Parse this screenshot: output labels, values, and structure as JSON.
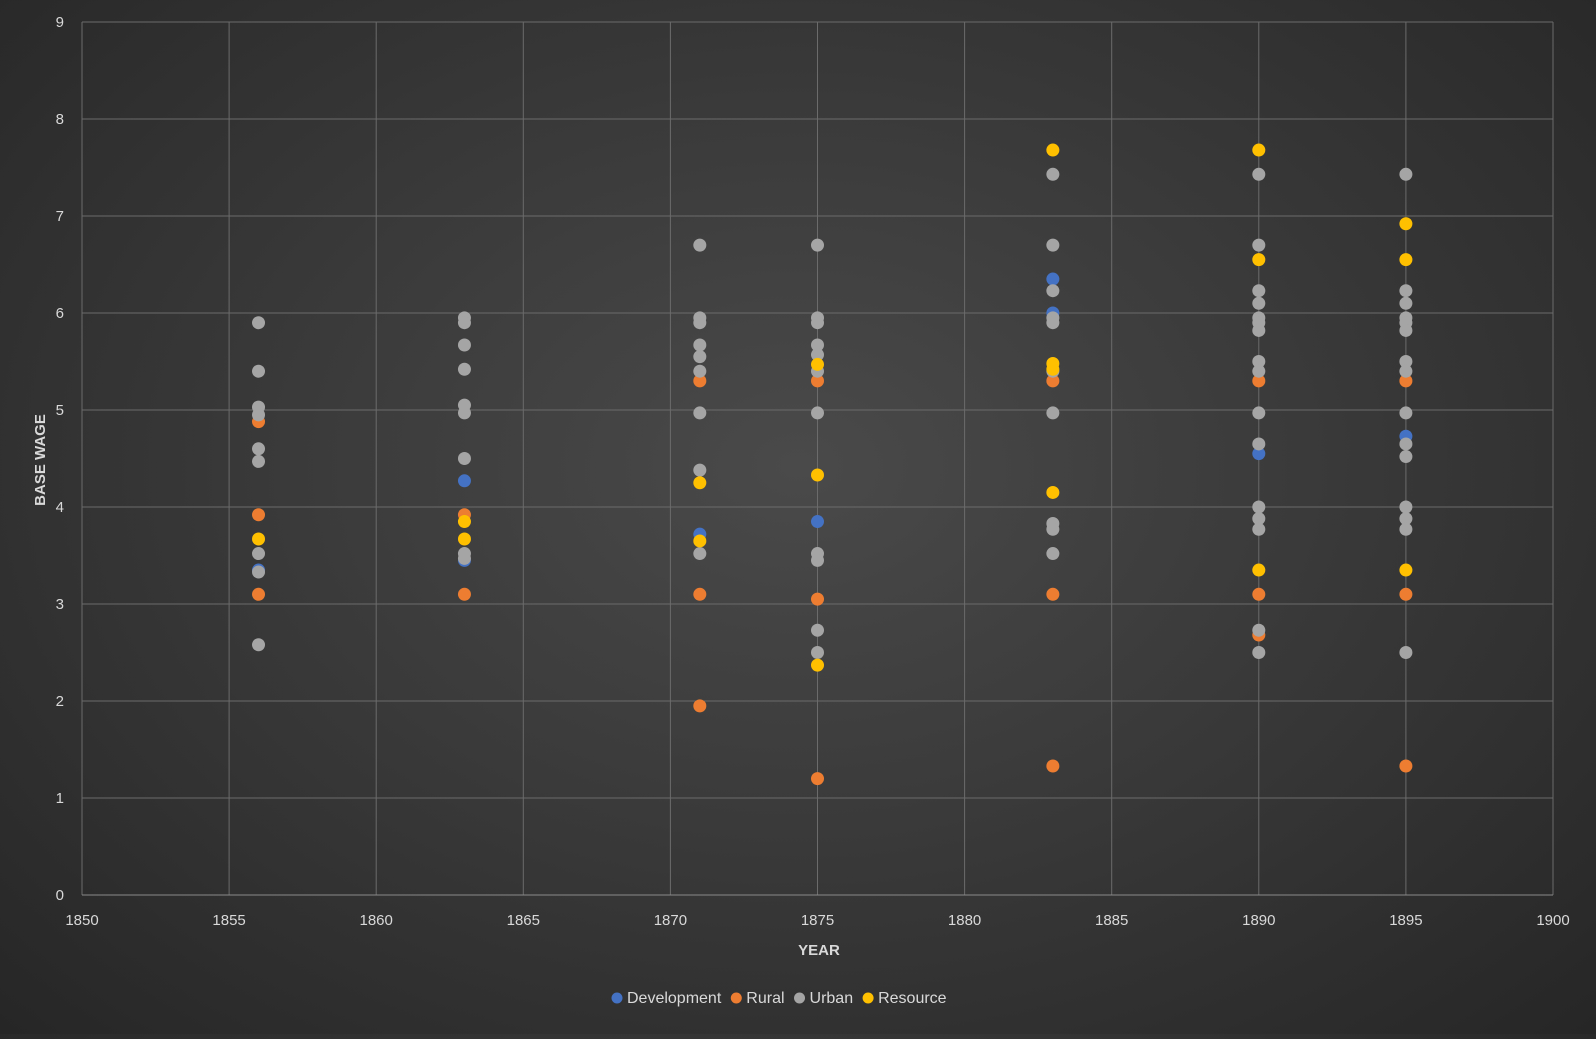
{
  "chart_data": {
    "type": "scatter",
    "title": "",
    "xlabel": "YEAR",
    "ylabel": "BASE WAGE",
    "xlim": [
      1850,
      1900
    ],
    "ylim": [
      0,
      9
    ],
    "x_ticks": [
      1850,
      1855,
      1860,
      1865,
      1870,
      1875,
      1880,
      1885,
      1890,
      1895,
      1900
    ],
    "y_ticks": [
      0,
      1,
      2,
      3,
      4,
      5,
      6,
      7,
      8,
      9
    ],
    "grid": true,
    "legend_position": "bottom",
    "series": [
      {
        "name": "Development",
        "color": "#4472c4",
        "points": [
          [
            1856,
            3.35
          ],
          [
            1863,
            4.27
          ],
          [
            1863,
            3.45
          ],
          [
            1871,
            3.72
          ],
          [
            1875,
            3.85
          ],
          [
            1883,
            6.35
          ],
          [
            1883,
            6.0
          ],
          [
            1890,
            4.55
          ],
          [
            1895,
            4.73
          ]
        ]
      },
      {
        "name": "Rural",
        "color": "#ed7d31",
        "points": [
          [
            1856,
            4.88
          ],
          [
            1856,
            3.92
          ],
          [
            1856,
            3.1
          ],
          [
            1863,
            3.92
          ],
          [
            1863,
            3.1
          ],
          [
            1871,
            5.3
          ],
          [
            1871,
            3.1
          ],
          [
            1871,
            1.95
          ],
          [
            1875,
            5.3
          ],
          [
            1875,
            3.05
          ],
          [
            1875,
            1.2
          ],
          [
            1883,
            5.3
          ],
          [
            1883,
            3.1
          ],
          [
            1883,
            1.33
          ],
          [
            1890,
            5.3
          ],
          [
            1890,
            3.1
          ],
          [
            1890,
            2.68
          ],
          [
            1895,
            5.3
          ],
          [
            1895,
            3.1
          ],
          [
            1895,
            1.33
          ]
        ]
      },
      {
        "name": "Urban",
        "color": "#a5a5a5",
        "points": [
          [
            1856,
            5.9
          ],
          [
            1856,
            5.4
          ],
          [
            1856,
            5.03
          ],
          [
            1856,
            4.95
          ],
          [
            1856,
            4.6
          ],
          [
            1856,
            4.47
          ],
          [
            1856,
            3.52
          ],
          [
            1856,
            3.33
          ],
          [
            1856,
            2.58
          ],
          [
            1863,
            5.95
          ],
          [
            1863,
            5.9
          ],
          [
            1863,
            5.67
          ],
          [
            1863,
            5.42
          ],
          [
            1863,
            5.05
          ],
          [
            1863,
            4.97
          ],
          [
            1863,
            4.5
          ],
          [
            1863,
            3.52
          ],
          [
            1863,
            3.47
          ],
          [
            1871,
            6.7
          ],
          [
            1871,
            5.95
          ],
          [
            1871,
            5.9
          ],
          [
            1871,
            5.67
          ],
          [
            1871,
            5.55
          ],
          [
            1871,
            5.4
          ],
          [
            1871,
            4.97
          ],
          [
            1871,
            4.38
          ],
          [
            1871,
            3.52
          ],
          [
            1875,
            6.7
          ],
          [
            1875,
            5.95
          ],
          [
            1875,
            5.9
          ],
          [
            1875,
            5.67
          ],
          [
            1875,
            5.57
          ],
          [
            1875,
            5.4
          ],
          [
            1875,
            4.97
          ],
          [
            1875,
            3.52
          ],
          [
            1875,
            3.45
          ],
          [
            1875,
            2.73
          ],
          [
            1875,
            2.5
          ],
          [
            1883,
            7.43
          ],
          [
            1883,
            6.7
          ],
          [
            1883,
            6.23
          ],
          [
            1883,
            5.95
          ],
          [
            1883,
            5.9
          ],
          [
            1883,
            5.4
          ],
          [
            1883,
            4.97
          ],
          [
            1883,
            3.83
          ],
          [
            1883,
            3.77
          ],
          [
            1883,
            3.52
          ],
          [
            1890,
            7.43
          ],
          [
            1890,
            6.7
          ],
          [
            1890,
            6.23
          ],
          [
            1890,
            6.1
          ],
          [
            1890,
            5.95
          ],
          [
            1890,
            5.9
          ],
          [
            1890,
            5.82
          ],
          [
            1890,
            5.5
          ],
          [
            1890,
            5.4
          ],
          [
            1890,
            4.97
          ],
          [
            1890,
            4.65
          ],
          [
            1890,
            4.0
          ],
          [
            1890,
            3.88
          ],
          [
            1890,
            3.77
          ],
          [
            1890,
            2.73
          ],
          [
            1890,
            2.5
          ],
          [
            1895,
            7.43
          ],
          [
            1895,
            6.23
          ],
          [
            1895,
            6.1
          ],
          [
            1895,
            5.95
          ],
          [
            1895,
            5.9
          ],
          [
            1895,
            5.82
          ],
          [
            1895,
            5.5
          ],
          [
            1895,
            5.4
          ],
          [
            1895,
            4.97
          ],
          [
            1895,
            4.65
          ],
          [
            1895,
            4.52
          ],
          [
            1895,
            4.0
          ],
          [
            1895,
            3.88
          ],
          [
            1895,
            3.77
          ],
          [
            1895,
            2.5
          ]
        ]
      },
      {
        "name": "Resource",
        "color": "#ffc000",
        "points": [
          [
            1856,
            3.67
          ],
          [
            1863,
            3.85
          ],
          [
            1863,
            3.67
          ],
          [
            1871,
            4.25
          ],
          [
            1871,
            3.65
          ],
          [
            1875,
            5.47
          ],
          [
            1875,
            4.33
          ],
          [
            1875,
            2.37
          ],
          [
            1883,
            7.68
          ],
          [
            1883,
            5.48
          ],
          [
            1883,
            5.42
          ],
          [
            1883,
            4.15
          ],
          [
            1890,
            7.68
          ],
          [
            1890,
            6.55
          ],
          [
            1890,
            3.35
          ],
          [
            1895,
            6.92
          ],
          [
            1895,
            6.55
          ],
          [
            1895,
            3.35
          ]
        ]
      }
    ]
  }
}
